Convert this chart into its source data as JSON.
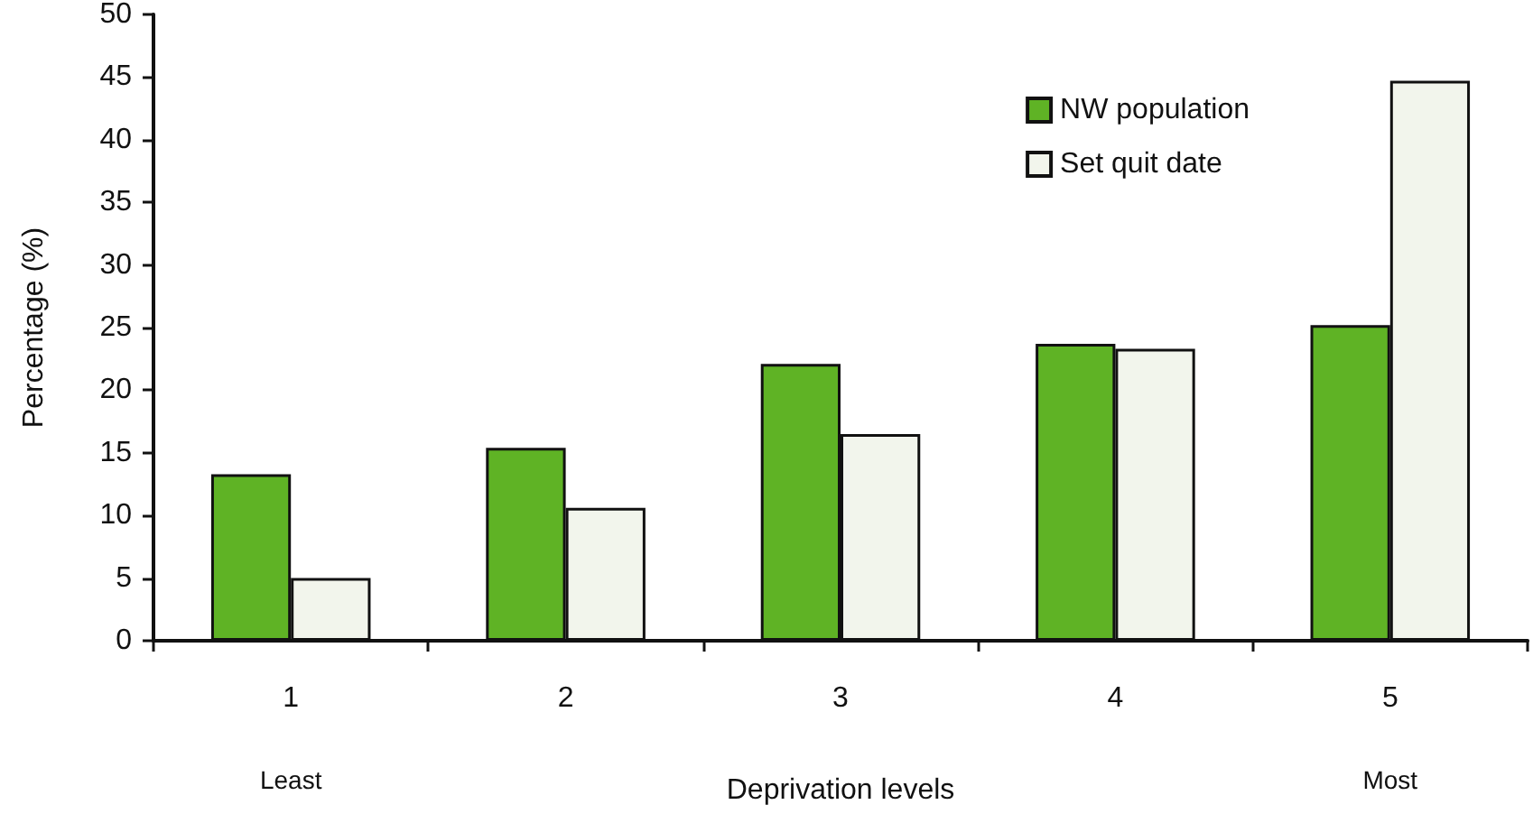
{
  "chart_data": {
    "type": "bar",
    "xlabel": "Deprivation levels",
    "ylabel": "Percentage (%)",
    "categories": [
      "1",
      "2",
      "3",
      "4",
      "5"
    ],
    "series": [
      {
        "name": "NW population",
        "color": "#5fb325",
        "values": [
          13.3,
          15.4,
          22.1,
          23.7,
          25.2
        ]
      },
      {
        "name": "Set quit date",
        "color": "#f2f5ec",
        "values": [
          5.0,
          10.6,
          16.5,
          23.3,
          44.7
        ]
      }
    ],
    "ylim": [
      0,
      50
    ],
    "yticks": [
      0,
      5,
      10,
      15,
      20,
      25,
      30,
      35,
      40,
      45,
      50
    ],
    "grid": false,
    "legend": "top right",
    "annotations": [
      "Least",
      "Most"
    ]
  }
}
